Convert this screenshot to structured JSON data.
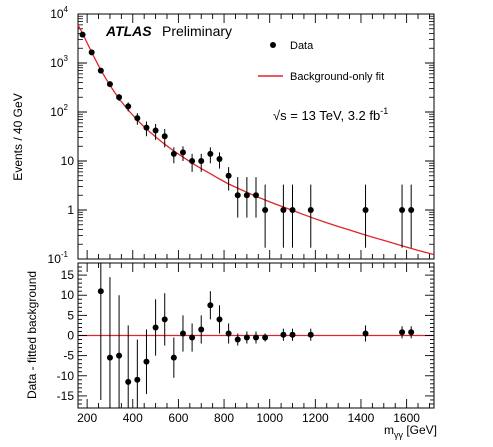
{
  "experiment": "ATLAS",
  "status": "Preliminary",
  "energy_label": "√s = 13 TeV, 3.2 fb",
  "energy_sup": "-1",
  "legend": {
    "data": "Data",
    "fit": "Background-only fit"
  },
  "colors": {
    "fit": "#e0252b",
    "data": "#000000"
  },
  "chart_data": [
    {
      "type": "scatter",
      "panel": "top",
      "ylabel": "Events / 40 GeV",
      "yscale": "log",
      "ylim": [
        0.1,
        10000
      ],
      "xlim": [
        160,
        1720
      ],
      "yticks": [
        {
          "v": 0.1,
          "base": "10",
          "exp": "-1"
        },
        {
          "v": 1,
          "base": "1",
          "exp": ""
        },
        {
          "v": 10,
          "base": "10",
          "exp": ""
        },
        {
          "v": 100,
          "base": "10",
          "exp": "2"
        },
        {
          "v": 1000,
          "base": "10",
          "exp": "3"
        },
        {
          "v": 10000,
          "base": "10",
          "exp": "4"
        }
      ],
      "series": [
        {
          "name": "Data",
          "x": [
            180,
            220,
            260,
            300,
            340,
            380,
            420,
            460,
            500,
            540,
            580,
            620,
            660,
            700,
            740,
            780,
            820,
            860,
            900,
            940,
            980,
            1060,
            1100,
            1180,
            1420,
            1580,
            1620
          ],
          "y": [
            3800,
            1650,
            700,
            370,
            200,
            130,
            75,
            48,
            42,
            32,
            14,
            15,
            10,
            10,
            14,
            11,
            5,
            2,
            2,
            2,
            1,
            1,
            1,
            1,
            1,
            1,
            1
          ],
          "yerr_lo": [
            130,
            90,
            60,
            45,
            33,
            27,
            20,
            16,
            15,
            13,
            5,
            5,
            4,
            4,
            5,
            4,
            2.5,
            1.3,
            1.3,
            1.3,
            0.83,
            0.83,
            0.83,
            0.83,
            0.83,
            0.83,
            0.83
          ],
          "yerr_hi": [
            130,
            90,
            60,
            45,
            33,
            27,
            20,
            16,
            15,
            13,
            5,
            5,
            4,
            4,
            5,
            4,
            2.5,
            2.7,
            2.7,
            2.7,
            2.3,
            2.3,
            2.3,
            2.3,
            2.3,
            2.3,
            2.3
          ]
        },
        {
          "name": "Background-only fit",
          "type": "line",
          "x": [
            160,
            180,
            220,
            260,
            300,
            340,
            380,
            420,
            460,
            500,
            540,
            580,
            620,
            660,
            700,
            740,
            780,
            820,
            860,
            900,
            940,
            980,
            1020,
            1060,
            1100,
            1150,
            1200,
            1250,
            1300,
            1350,
            1400,
            1450,
            1500,
            1550,
            1600,
            1650,
            1700,
            1720
          ],
          "y": [
            6000,
            4000,
            1650,
            720,
            350,
            185,
            110,
            68,
            45,
            31,
            22,
            16,
            12,
            9,
            7,
            5.5,
            4.3,
            3.4,
            2.8,
            2.3,
            1.9,
            1.6,
            1.35,
            1.15,
            0.98,
            0.8,
            0.66,
            0.55,
            0.46,
            0.39,
            0.33,
            0.28,
            0.24,
            0.205,
            0.175,
            0.15,
            0.13,
            0.123
          ]
        }
      ]
    },
    {
      "type": "scatter",
      "panel": "bottom",
      "xlabel": "m",
      "xlabel_sub": "γγ",
      "xlabel_unit": " [GeV]",
      "ylabel": "Data - fitted background",
      "ylim": [
        -18,
        18
      ],
      "xlim": [
        160,
        1720
      ],
      "yticks": [
        -15,
        -10,
        -5,
        0,
        5,
        10,
        15
      ],
      "xticks": [
        200,
        400,
        600,
        800,
        1000,
        1200,
        1400,
        1600
      ],
      "series": [
        {
          "name": "Data",
          "x": [
            260,
            300,
            340,
            380,
            420,
            460,
            500,
            540,
            580,
            620,
            660,
            700,
            740,
            780,
            820,
            860,
            900,
            940,
            980,
            1060,
            1100,
            1180,
            1420,
            1580,
            1620
          ],
          "y": [
            11,
            -5.5,
            -5,
            -11.5,
            -11,
            -6.5,
            2,
            4,
            -5.5,
            0.5,
            -0.5,
            1.5,
            7.5,
            4,
            0.5,
            -1,
            -0.5,
            -0.5,
            -0.5,
            0.2,
            0.2,
            0.2,
            0.5,
            0.8,
            0.8
          ],
          "yerr": [
            27,
            20,
            15,
            14,
            10,
            8,
            7,
            6.5,
            5,
            4.5,
            3.5,
            3.5,
            3.5,
            3.5,
            2.5,
            1.5,
            1.5,
            1.5,
            1,
            1.5,
            1.5,
            1.5,
            2,
            1.5,
            1.5
          ]
        }
      ]
    }
  ]
}
